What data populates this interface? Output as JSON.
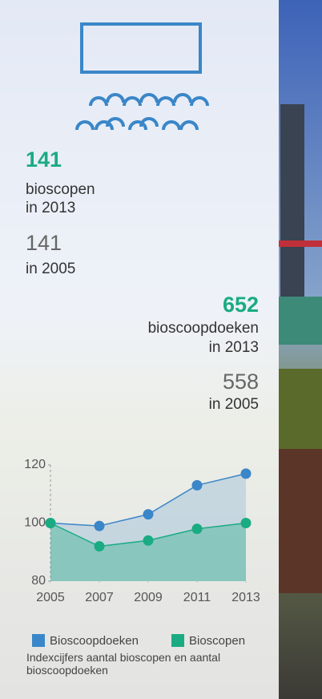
{
  "stats": [
    {
      "value": "141",
      "label": "bioscopen",
      "year": "in 2013"
    },
    {
      "value": "141",
      "year": "in 2005"
    },
    {
      "value": "652",
      "label": "bioscoopdoeken",
      "year": "in 2013"
    },
    {
      "value": "558",
      "year": "in 2005"
    }
  ],
  "chart_data": {
    "type": "area",
    "x": [
      2005,
      2007,
      2009,
      2011,
      2013
    ],
    "xlim": [
      2005,
      2013
    ],
    "xticks": [
      2005,
      2007,
      2009,
      2011,
      2013
    ],
    "ylim": [
      80,
      120
    ],
    "yticks": [
      80,
      100,
      120
    ],
    "series": [
      {
        "name": "Bioscoopdoeken",
        "color": "#3a86c8",
        "values": [
          100,
          99,
          103,
          113,
          117
        ]
      },
      {
        "name": "Bioscopen",
        "color": "#1aab82",
        "values": [
          100,
          92,
          94,
          98,
          100
        ]
      }
    ],
    "note": "Indexcijfers aantal bioscopen en aantal bioscoopdoeken"
  }
}
